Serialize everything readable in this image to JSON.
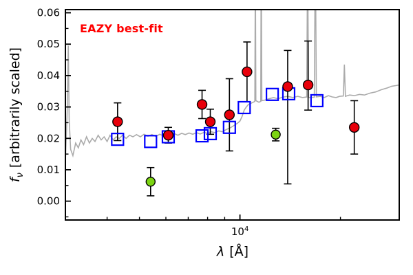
{
  "figure": {
    "annotation": "EAZY best-fit",
    "annotation_color": "#ff0000",
    "xlabel_lambda": "λ",
    "xlabel_unit": "[Å]",
    "ylabel_f": "f",
    "ylabel_sub": "ν",
    "ylabel_rest": "[arbitrarily scaled]",
    "x_major_base": "10",
    "x_major_exp": "4"
  },
  "chart_data": {
    "type": "scatter",
    "title": "",
    "xlabel": "λ [Å]",
    "ylabel": "f_ν [arbitrarily scaled]",
    "xscale": "log",
    "xlim": [
      3000,
      30000
    ],
    "ylim": [
      -0.006,
      0.061
    ],
    "grid": false,
    "legend": "none",
    "annotation": "EAZY best-fit",
    "x_major_ticks": [
      10000
    ],
    "x_minor_ticks": [
      4000,
      5000,
      6000,
      7000,
      8000,
      9000,
      20000,
      30000
    ],
    "y_major_ticks": [
      {
        "v": 0.0,
        "label": "0.00"
      },
      {
        "v": 0.01,
        "label": "0.01"
      },
      {
        "v": 0.02,
        "label": "0.02"
      },
      {
        "v": 0.03,
        "label": "0.03"
      },
      {
        "v": 0.04,
        "label": "0.04"
      },
      {
        "v": 0.05,
        "label": "0.05"
      },
      {
        "v": 0.06,
        "label": "0.06"
      }
    ],
    "y_minor_ticks": [
      -0.005,
      0.005,
      0.015,
      0.025,
      0.035,
      0.045,
      0.055
    ],
    "colors": {
      "spectrum": "#ababab",
      "model_squares": "#0000ff",
      "observed_points": "#e8000b",
      "flagged_points": "#7cd412",
      "error_bars": "#000000",
      "axes": "#000000"
    },
    "series": {
      "spectrum": {
        "name": "eazy-best-fit-template-spectrum",
        "style": "line",
        "points": [
          [
            3000,
            0.0125
          ],
          [
            3040,
            0.03
          ],
          [
            3060,
            0.0495
          ],
          [
            3080,
            0.026
          ],
          [
            3110,
            0.0165
          ],
          [
            3160,
            0.0145
          ],
          [
            3220,
            0.0185
          ],
          [
            3280,
            0.017
          ],
          [
            3340,
            0.0195
          ],
          [
            3400,
            0.018
          ],
          [
            3470,
            0.0205
          ],
          [
            3540,
            0.0185
          ],
          [
            3610,
            0.02
          ],
          [
            3680,
            0.019
          ],
          [
            3760,
            0.021
          ],
          [
            3840,
            0.0195
          ],
          [
            3920,
            0.0205
          ],
          [
            4000,
            0.019
          ],
          [
            4080,
            0.021
          ],
          [
            4170,
            0.0195
          ],
          [
            4260,
            0.0205
          ],
          [
            4350,
            0.02
          ],
          [
            4450,
            0.021
          ],
          [
            4560,
            0.02
          ],
          [
            4670,
            0.021
          ],
          [
            4780,
            0.0205
          ],
          [
            4900,
            0.0212
          ],
          [
            5030,
            0.0205
          ],
          [
            5160,
            0.0213
          ],
          [
            5300,
            0.0207
          ],
          [
            5450,
            0.0212
          ],
          [
            5600,
            0.0206
          ],
          [
            5750,
            0.0213
          ],
          [
            5900,
            0.0208
          ],
          [
            6050,
            0.0214
          ],
          [
            6200,
            0.0209
          ],
          [
            6360,
            0.0215
          ],
          [
            6520,
            0.021
          ],
          [
            6690,
            0.0216
          ],
          [
            6860,
            0.0212
          ],
          [
            7040,
            0.0217
          ],
          [
            7220,
            0.0213
          ],
          [
            7410,
            0.0218
          ],
          [
            7600,
            0.0214
          ],
          [
            7800,
            0.0219
          ],
          [
            8000,
            0.0216
          ],
          [
            8210,
            0.0221
          ],
          [
            8420,
            0.0218
          ],
          [
            8640,
            0.0224
          ],
          [
            8860,
            0.0221
          ],
          [
            9090,
            0.0228
          ],
          [
            9330,
            0.0233
          ],
          [
            9570,
            0.024
          ],
          [
            9820,
            0.0248
          ],
          [
            10000,
            0.0255
          ],
          [
            10150,
            0.027
          ],
          [
            10300,
            0.029
          ],
          [
            10450,
            0.03
          ],
          [
            10600,
            0.0308
          ],
          [
            10800,
            0.0312
          ],
          [
            11000,
            0.0316
          ],
          [
            11080,
            0.0318
          ],
          [
            11120,
            0.075
          ],
          [
            11160,
            0.032
          ],
          [
            11400,
            0.0315
          ],
          [
            11540,
            0.0318
          ],
          [
            11580,
            0.08
          ],
          [
            11630,
            0.032
          ],
          [
            11900,
            0.0322
          ],
          [
            12200,
            0.0326
          ],
          [
            12600,
            0.033
          ],
          [
            13000,
            0.0326
          ],
          [
            13400,
            0.0331
          ],
          [
            13900,
            0.0334
          ],
          [
            14400,
            0.033
          ],
          [
            14900,
            0.0334
          ],
          [
            15400,
            0.033
          ],
          [
            15850,
            0.0332
          ],
          [
            15950,
            0.078
          ],
          [
            16050,
            0.033
          ],
          [
            16700,
            0.0331
          ],
          [
            16820,
            0.082
          ],
          [
            16940,
            0.0332
          ],
          [
            17400,
            0.0334
          ],
          [
            17900,
            0.033
          ],
          [
            18400,
            0.0336
          ],
          [
            18900,
            0.0332
          ],
          [
            19400,
            0.033
          ],
          [
            19900,
            0.0334
          ],
          [
            20400,
            0.0335
          ],
          [
            20550,
            0.0435
          ],
          [
            20700,
            0.0334
          ],
          [
            21300,
            0.0338
          ],
          [
            22000,
            0.0336
          ],
          [
            22800,
            0.034
          ],
          [
            23600,
            0.0338
          ],
          [
            24500,
            0.0344
          ],
          [
            25500,
            0.0348
          ],
          [
            26500,
            0.0355
          ],
          [
            27500,
            0.036
          ],
          [
            28500,
            0.0366
          ],
          [
            29300,
            0.0368
          ],
          [
            30000,
            0.037
          ]
        ]
      },
      "model_squares": {
        "name": "template-photometry",
        "style": "open-square",
        "points": [
          [
            4300,
            0.0197
          ],
          [
            5400,
            0.019
          ],
          [
            6100,
            0.0205
          ],
          [
            7700,
            0.0208
          ],
          [
            8150,
            0.0215
          ],
          [
            9300,
            0.0235
          ],
          [
            10300,
            0.0298
          ],
          [
            12500,
            0.034
          ],
          [
            14000,
            0.0342
          ],
          [
            17000,
            0.032
          ]
        ]
      },
      "observed_points": {
        "name": "observed-photometry",
        "style": "filled-circle-errorbar",
        "points": [
          {
            "lam": 4300,
            "f": 0.0253,
            "elo": 0.006,
            "ehi": 0.006
          },
          {
            "lam": 6100,
            "f": 0.021,
            "elo": 0.0025,
            "ehi": 0.0025
          },
          {
            "lam": 7700,
            "f": 0.0308,
            "elo": 0.0045,
            "ehi": 0.0045
          },
          {
            "lam": 8150,
            "f": 0.0253,
            "elo": 0.004,
            "ehi": 0.004
          },
          {
            "lam": 9300,
            "f": 0.0275,
            "elo": 0.0115,
            "ehi": 0.0115
          },
          {
            "lam": 10500,
            "f": 0.0412,
            "elo": 0.0095,
            "ehi": 0.0095
          },
          {
            "lam": 13900,
            "f": 0.0365,
            "elo": 0.031,
            "ehi": 0.0115
          },
          {
            "lam": 16000,
            "f": 0.037,
            "elo": 0.008,
            "ehi": 0.014
          },
          {
            "lam": 22000,
            "f": 0.0235,
            "elo": 0.0085,
            "ehi": 0.0085
          }
        ]
      },
      "flagged_points": {
        "name": "flagged-photometry",
        "style": "filled-circle-errorbar",
        "points": [
          {
            "lam": 5400,
            "f": 0.0062,
            "elo": 0.0045,
            "ehi": 0.0045
          },
          {
            "lam": 12800,
            "f": 0.0212,
            "elo": 0.002,
            "ehi": 0.002
          }
        ]
      }
    }
  }
}
